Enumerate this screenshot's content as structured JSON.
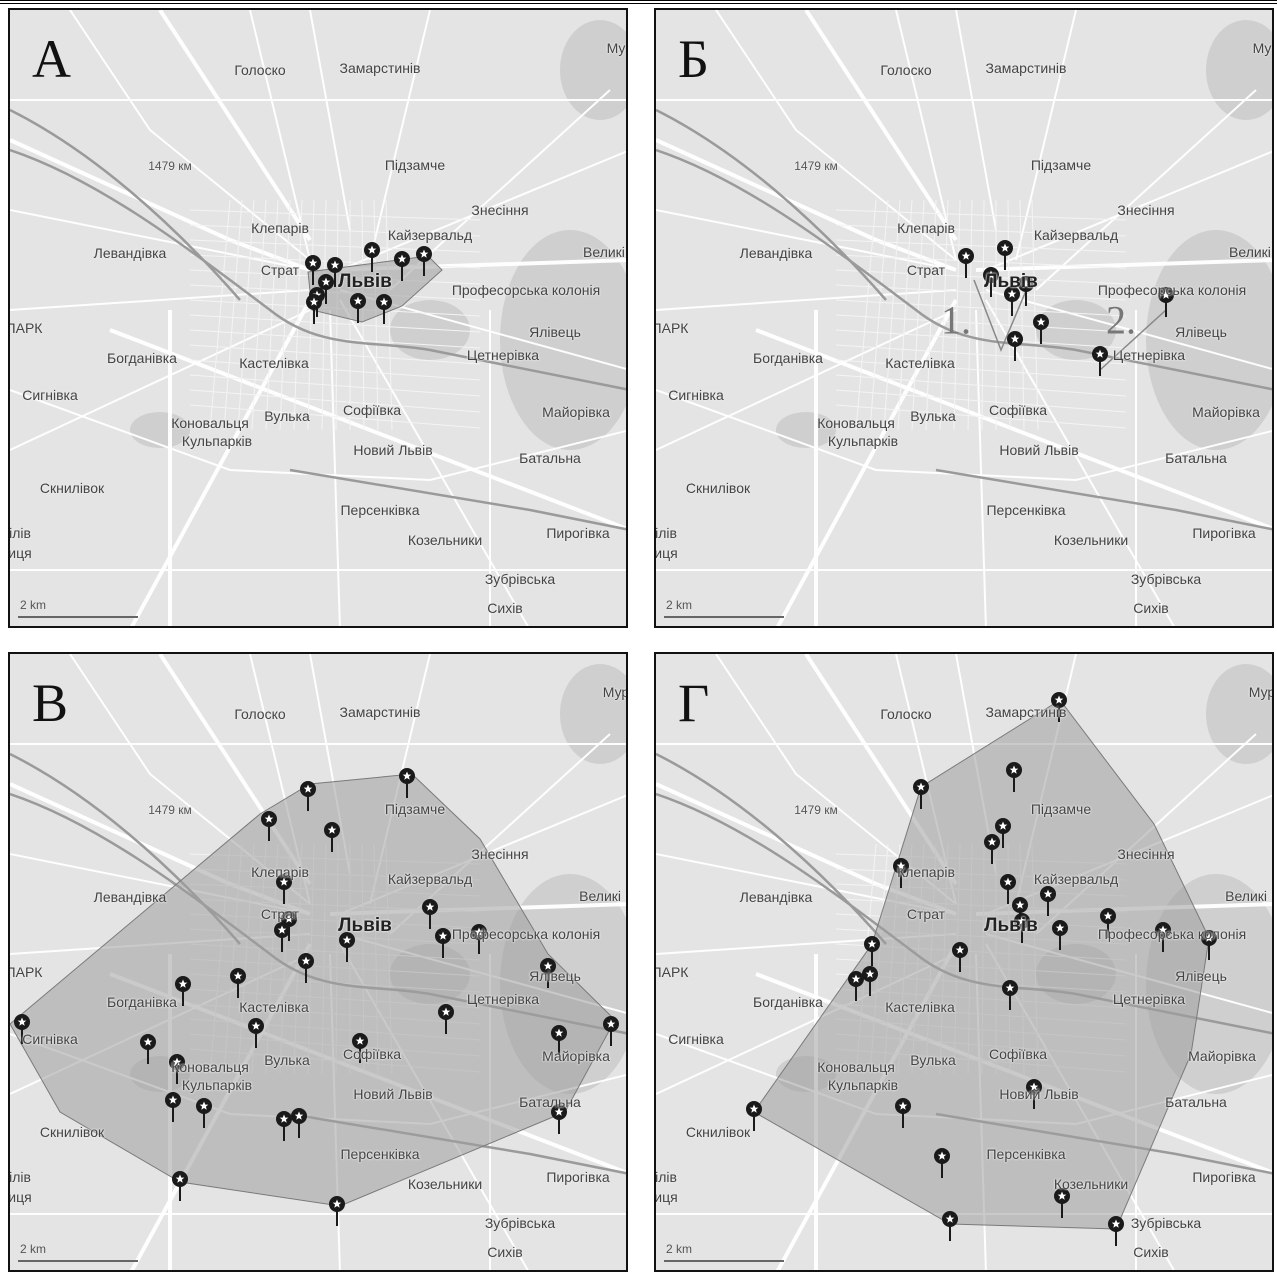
{
  "panels": [
    {
      "letter": "А",
      "places": [
        "Голоско",
        "Замарстинів",
        "1479 км",
        "Підзамче",
        "Знесіння",
        "Клепарів",
        "Кайзервальд",
        "Левандівка",
        "Страт",
        "Львів",
        "Професорська колонія",
        "Ялівець",
        "Богданівка",
        "Кастелівка",
        "Цетнерівка",
        "Сигнівка",
        "Коновальця",
        "Кульпарків",
        "Вулька",
        "Софіївка",
        "Майорівка",
        "Новий Львів",
        "Батальна",
        "Скнилівок",
        "Персенківка",
        "Козельники",
        "Пирогівка",
        "Зубрівська",
        "Сихів",
        "Му",
        "ПАРК",
        "Великі К",
        "ілів",
        "иця"
      ],
      "scale": "2 km"
    },
    {
      "letter": "Б",
      "places": [
        "Голоско",
        "Замарстинів",
        "1479 км",
        "Підзамче",
        "Знесіння",
        "Клепарів",
        "Кайзервальд",
        "Левандівка",
        "Страт",
        "Львів",
        "Професорська колонія",
        "Ялівець",
        "Богданівка",
        "Кастелівка",
        "Цетнерівка",
        "Сигнівка",
        "Коновальця",
        "Кульпарків",
        "Вулька",
        "Софіївка",
        "Майорівка",
        "Новий Львів",
        "Батальна",
        "Скнилівок",
        "Персенківка",
        "Козельники",
        "Пирогівка",
        "Зубрівська",
        "Сихів",
        "Му",
        "ПАРК",
        "Великі К",
        "ілів",
        "иця"
      ],
      "clusters": [
        "1.",
        "2."
      ],
      "scale": "2 km"
    },
    {
      "letter": "В",
      "places": [
        "Голоско",
        "Замарстинів",
        "1479 км",
        "Підзамче",
        "Знесіння",
        "Клепарів",
        "Кайзервальд",
        "Левандівка",
        "Страт",
        "Львів",
        "Професорська колонія",
        "Ялівець",
        "Богданівка",
        "Кастелівка",
        "Цетнерівка",
        "Сигнівка",
        "Коновальця",
        "Кульпарків",
        "Вулька",
        "Софіївка",
        "Майорівка",
        "Новий Львів",
        "Батальна",
        "Скнилівок",
        "Персенківка",
        "Козельники",
        "Пирогівка",
        "Зубрівська",
        "Сихів",
        "Мур",
        "ПАРК",
        "Великі Кр",
        "ілів",
        "иця"
      ],
      "scale": "2 km"
    },
    {
      "letter": "Г",
      "places": [
        "Голоско",
        "Замарстинів",
        "1479 км",
        "Підзамче",
        "Знесіння",
        "Клепарів",
        "Кайзервальд",
        "Левандівка",
        "Страт",
        "Львів",
        "Професорська колонія",
        "Ялівець",
        "Богданівка",
        "Кастелівка",
        "Цетнерівка",
        "Сигнівка",
        "Коновальця",
        "Кульпарків",
        "Вулька",
        "Софіївка",
        "Майорівка",
        "Новий Львів",
        "Батальна",
        "Скнилівок",
        "Персенківка",
        "Козельники",
        "Пирогівка",
        "Зубрівська",
        "Сихів",
        "Мур",
        "ПАРК",
        "Великі Кр",
        "ілів",
        "иця"
      ],
      "scale": "2 km"
    }
  ],
  "colors": {
    "map_bg": "#e4e4e4",
    "area_fill": "#9e9e9e",
    "marker": "#1a1a1a",
    "road": "#ffffff"
  },
  "icons": {
    "marker": "map-pin-star-icon"
  }
}
